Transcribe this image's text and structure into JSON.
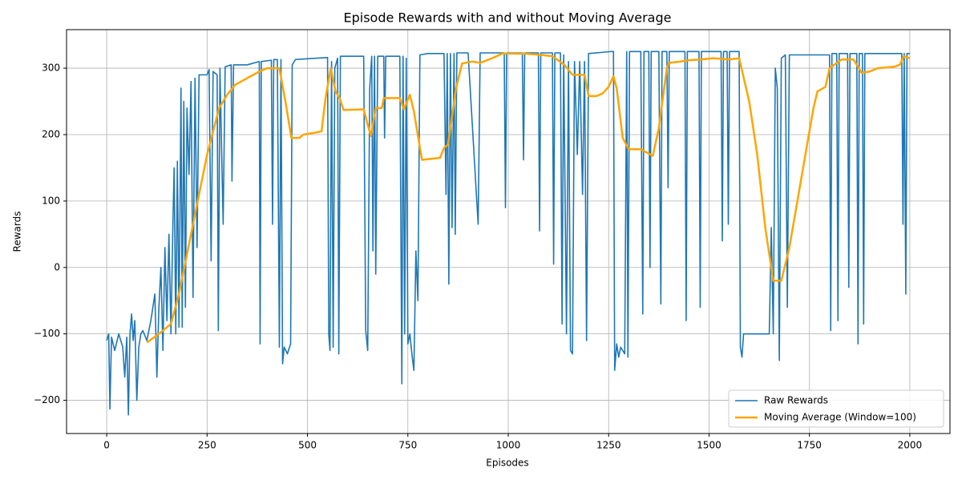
{
  "chart_data": {
    "type": "line",
    "title": "Episode Rewards with and without Moving Average",
    "xlabel": "Episodes",
    "ylabel": "Rewards",
    "xlim": [
      -100,
      2100
    ],
    "ylim": [
      -250,
      358
    ],
    "xticks": [
      0,
      250,
      500,
      750,
      1000,
      1250,
      1500,
      1750,
      2000
    ],
    "yticks": [
      {
        "value": -200,
        "label": "−200"
      },
      {
        "value": -100,
        "label": "−100"
      },
      0,
      100,
      200,
      300
    ],
    "grid": true,
    "legend": "lower right",
    "series": [
      {
        "name": "Raw Rewards",
        "color": "#1f77b4",
        "width": 1.6,
        "x": [
          0,
          5,
          8,
          12,
          20,
          30,
          40,
          45,
          50,
          54,
          58,
          62,
          66,
          70,
          75,
          80,
          85,
          90,
          100,
          110,
          115,
          120,
          125,
          130,
          135,
          140,
          145,
          150,
          155,
          160,
          165,
          168,
          172,
          176,
          180,
          185,
          188,
          192,
          196,
          200,
          205,
          210,
          215,
          220,
          225,
          230,
          250,
          255,
          260,
          265,
          275,
          278,
          282,
          290,
          295,
          310,
          312,
          316,
          350,
          380,
          382,
          385,
          410,
          413,
          416,
          425,
          430,
          434,
          438,
          442,
          450,
          458,
          462,
          470,
          520,
          550,
          553,
          556,
          560,
          564,
          568,
          575,
          578,
          582,
          620,
          640,
          645,
          650,
          655,
          660,
          663,
          667,
          670,
          675,
          690,
          692,
          695,
          730,
          735,
          738,
          742,
          746,
          750,
          755,
          760,
          765,
          770,
          775,
          780,
          800,
          840,
          845,
          848,
          852,
          856,
          860,
          865,
          868,
          872,
          900,
          925,
          930,
          990,
          993,
          996,
          1035,
          1038,
          1041,
          1075,
          1078,
          1081,
          1110,
          1113,
          1116,
          1130,
          1134,
          1138,
          1145,
          1150,
          1155,
          1160,
          1165,
          1172,
          1178,
          1185,
          1190,
          1195,
          1200,
          1255,
          1262,
          1265,
          1270,
          1275,
          1280,
          1290,
          1295,
          1298,
          1302,
          1330,
          1335,
          1338,
          1350,
          1353,
          1356,
          1375,
          1380,
          1383,
          1395,
          1398,
          1401,
          1440,
          1443,
          1446,
          1475,
          1478,
          1481,
          1530,
          1533,
          1536,
          1545,
          1548,
          1551,
          1575,
          1578,
          1582,
          1586,
          1620,
          1650,
          1655,
          1660,
          1665,
          1670,
          1675,
          1680,
          1690,
          1695,
          1700,
          1740,
          1800,
          1803,
          1806,
          1818,
          1821,
          1824,
          1845,
          1848,
          1851,
          1868,
          1871,
          1874,
          1882,
          1885,
          1888,
          1980,
          1983,
          1986,
          1990,
          1993,
          2000
        ],
        "values": [
          -110,
          -100,
          -213,
          -105,
          -125,
          -100,
          -120,
          -165,
          -105,
          -222,
          -100,
          -70,
          -110,
          -80,
          -200,
          -120,
          -100,
          -95,
          -110,
          -80,
          -60,
          -40,
          -165,
          -60,
          0,
          -125,
          30,
          -80,
          50,
          -100,
          70,
          150,
          -100,
          160,
          -90,
          270,
          -90,
          250,
          -60,
          240,
          140,
          280,
          -45,
          285,
          30,
          290,
          290,
          298,
          10,
          295,
          290,
          -95,
          300,
          65,
          302,
          305,
          130,
          305,
          305,
          310,
          -115,
          310,
          312,
          65,
          313,
          313,
          -120,
          313,
          -145,
          -120,
          -130,
          -115,
          305,
          313,
          315,
          316,
          -100,
          -125,
          310,
          -120,
          300,
          315,
          -130,
          318,
          318,
          318,
          -95,
          -125,
          270,
          318,
          25,
          318,
          -10,
          318,
          318,
          195,
          318,
          318,
          -175,
          318,
          -100,
          315,
          -115,
          -100,
          -130,
          -155,
          25,
          -50,
          320,
          322,
          322,
          110,
          322,
          -25,
          322,
          60,
          322,
          50,
          323,
          323,
          65,
          323,
          323,
          90,
          323,
          323,
          162,
          323,
          323,
          55,
          323,
          323,
          5,
          323,
          323,
          -85,
          320,
          -100,
          310,
          -125,
          -130,
          310,
          170,
          310,
          110,
          310,
          -110,
          322,
          325,
          325,
          -155,
          -115,
          -135,
          -120,
          -130,
          325,
          -135,
          325,
          325,
          -70,
          325,
          325,
          0,
          325,
          325,
          -55,
          325,
          325,
          120,
          325,
          325,
          -80,
          325,
          325,
          -60,
          325,
          325,
          40,
          325,
          325,
          65,
          325,
          325,
          -120,
          -135,
          -100,
          -100,
          -100,
          60,
          -100,
          300,
          270,
          -140,
          315,
          320,
          -60,
          320,
          320,
          320,
          -95,
          322,
          322,
          -80,
          322,
          322,
          -30,
          322,
          322,
          -115,
          322,
          322,
          -85,
          322,
          322,
          65,
          322,
          -40,
          322,
          322
        ]
      },
      {
        "name": "Moving Average (Window=100)",
        "color": "#ffa500",
        "width": 2.5,
        "x": [
          100,
          130,
          160,
          180,
          200,
          220,
          250,
          280,
          300,
          320,
          350,
          380,
          400,
          430,
          445,
          460,
          480,
          490,
          520,
          535,
          545,
          558,
          570,
          580,
          590,
          640,
          650,
          658,
          670,
          685,
          690,
          730,
          740,
          755,
          765,
          785,
          830,
          840,
          850,
          870,
          885,
          910,
          930,
          960,
          985,
          1020,
          1040,
          1080,
          1110,
          1140,
          1160,
          1190,
          1200,
          1220,
          1235,
          1250,
          1262,
          1270,
          1285,
          1300,
          1330,
          1360,
          1375,
          1395,
          1400,
          1430,
          1450,
          1480,
          1510,
          1550,
          1575,
          1600,
          1620,
          1640,
          1660,
          1680,
          1700,
          1720,
          1740,
          1760,
          1770,
          1790,
          1800,
          1830,
          1860,
          1880,
          1900,
          1920,
          1960,
          1975,
          1985,
          2000
        ],
        "values": [
          -113,
          -100,
          -85,
          -40,
          20,
          80,
          170,
          240,
          260,
          275,
          285,
          295,
          300,
          300,
          250,
          195,
          195,
          200,
          203,
          205,
          255,
          300,
          265,
          255,
          237,
          238,
          215,
          198,
          240,
          240,
          255,
          255,
          238,
          260,
          235,
          162,
          165,
          180,
          185,
          270,
          307,
          310,
          308,
          315,
          322,
          322,
          322,
          320,
          318,
          305,
          290,
          290,
          258,
          258,
          262,
          272,
          288,
          270,
          195,
          178,
          178,
          168,
          210,
          300,
          308,
          310,
          312,
          313,
          315,
          313,
          315,
          250,
          170,
          60,
          -20,
          -20,
          30,
          100,
          170,
          240,
          265,
          272,
          300,
          313,
          313,
          293,
          295,
          300,
          302,
          305,
          318,
          315
        ]
      }
    ]
  }
}
